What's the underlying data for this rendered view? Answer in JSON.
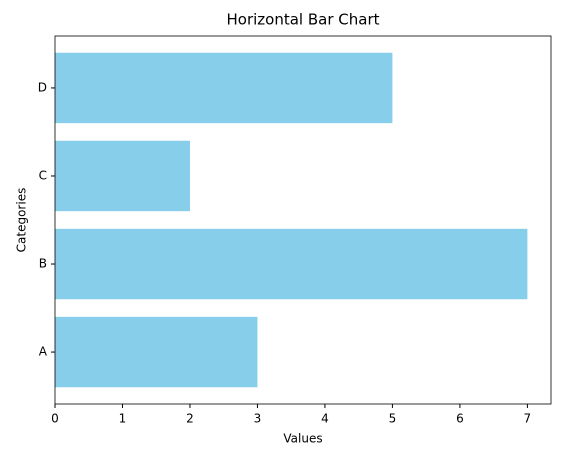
{
  "chart_data": {
    "type": "barh",
    "title": "Horizontal Bar Chart",
    "x_label": "Values",
    "y_label": "Categories",
    "categories": [
      "A",
      "B",
      "C",
      "D"
    ],
    "values": [
      3,
      7,
      2,
      5
    ],
    "color": "#87ceeb",
    "xlim": [
      0,
      7.35
    ],
    "xticks": [
      0,
      1,
      2,
      3,
      4,
      5,
      6,
      7
    ],
    "grid": false
  }
}
